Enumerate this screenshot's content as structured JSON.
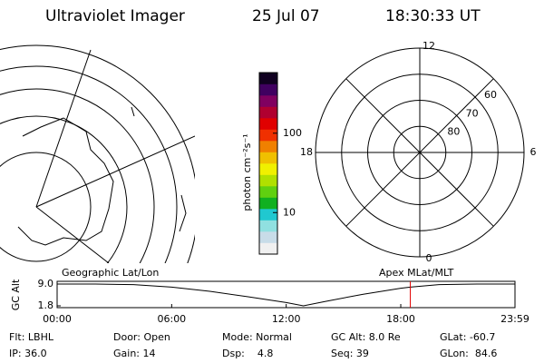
{
  "header": {
    "instrument": "Ultraviolet Imager",
    "date": "25 Jul 07",
    "time": "18:30:33 UT"
  },
  "polar": {
    "mlt_labels": [
      12,
      6,
      0,
      18
    ],
    "lat_labels": [
      60,
      70,
      80
    ],
    "lat_min": 50
  },
  "colorbar": {
    "label": "photon cm⁻²s⁻¹",
    "log": true,
    "lim": [
      3,
      580
    ],
    "ticks": [
      10,
      100
    ],
    "colors": [
      "#f0f0f0",
      "#c8dce8",
      "#90e0e0",
      "#20c8d0",
      "#10b020",
      "#60d010",
      "#b0e000",
      "#f0f000",
      "#f0c000",
      "#f08000",
      "#f03000",
      "#e00000",
      "#b00030",
      "#800060",
      "#400060",
      "#100020"
    ]
  },
  "altitude": {
    "title_left": "Geographic Lat/Lon",
    "title_right": "Apex MLat/MLT",
    "ylabel": "GC Alt",
    "ylim": [
      1.8,
      9.0
    ],
    "yticks": [
      {
        "value": 9.0,
        "label": "9.0"
      },
      1.8
    ],
    "xlim": [
      0,
      23.983
    ],
    "xticks": [
      {
        "value": 0,
        "label": "00:00"
      },
      {
        "value": 6,
        "label": "06:00"
      },
      {
        "value": 12,
        "label": "12:00"
      },
      {
        "value": 18,
        "label": "18:00"
      },
      {
        "value": 23.983,
        "label": "23:59"
      }
    ],
    "x": [
      0,
      2,
      4,
      6,
      8,
      10,
      12,
      12.9,
      14,
      16,
      18,
      18.5,
      20,
      22,
      23.983
    ],
    "values": [
      9.0,
      9.0,
      8.8,
      8.0,
      6.6,
      4.8,
      2.9,
      1.8,
      3.2,
      5.6,
      7.6,
      8.0,
      8.8,
      9.0,
      9.0
    ],
    "marker": 18.5,
    "marker_color": "#e00000"
  },
  "footer": {
    "rows": [
      [
        "Flt: LBHL",
        "Door: Open",
        "Mode: Normal",
        "GC Alt: 8.0 Re",
        "GLat: -60.7"
      ],
      [
        "IP: 36.0",
        "Gain: 14",
        "Dsp:    4.8",
        "Seq: 39",
        "GLon:  84.6"
      ]
    ]
  }
}
